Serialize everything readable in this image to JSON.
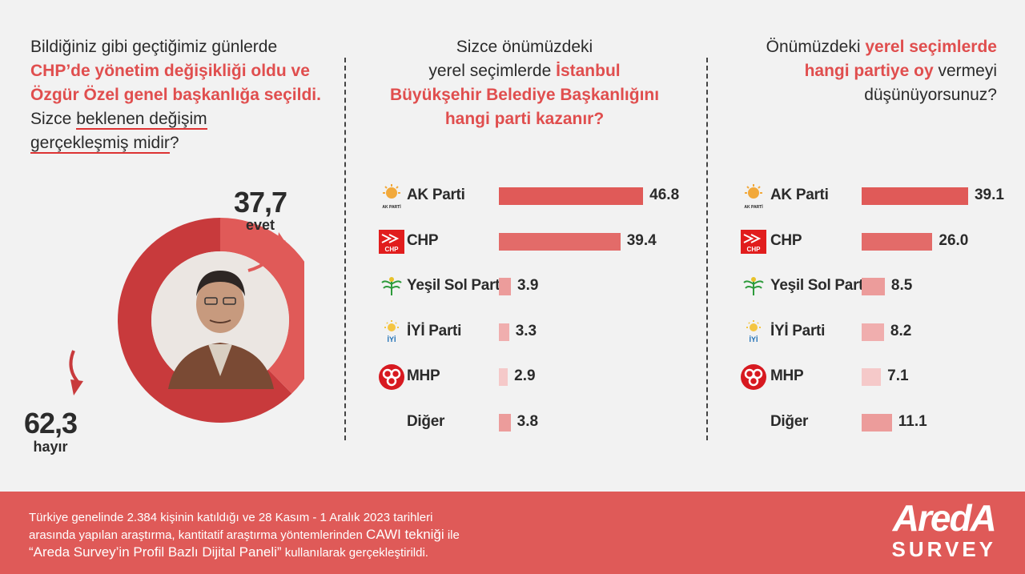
{
  "left": {
    "q_l1": "Bildiğiniz gibi geçtiğimiz günlerde",
    "q_l2": "CHP’de yönetim değişikliği oldu ve",
    "q_l3": "Özgür Özel genel başkanlığa seçildi.",
    "q_l4a": "Sizce ",
    "q_l4b": "beklenen değişim",
    "q_l5a": "gerçekleşmiş midir",
    "q_l5b": "?",
    "yes_value": "37,7",
    "yes_label": "evet",
    "no_value": "62,3",
    "no_label": "hayır"
  },
  "middle": {
    "q_l1": "Sizce önümüzdeki",
    "q_l2a": "yerel seçimlerde ",
    "q_l2b": "İstanbul",
    "q_l3": "Büyükşehir Belediye Başkanlığını",
    "q_l4": "hangi parti kazanır?"
  },
  "right": {
    "q_l1a": "Önümüzdeki ",
    "q_l1b": "yerel seçimlerde",
    "q_l2a": "hangi partiye oy",
    "q_l2b": " vermeyi",
    "q_l3": "düşünüyorsunuz?"
  },
  "logos": {
    "akp": "AK PARTİ",
    "chp": "CHP",
    "iyi": "İYİ"
  },
  "footer": {
    "l1": "Türkiye genelinde 2.384 kişinin katıldığı ve 28 Kasım - 1 Aralık 2023 tarihleri",
    "l2a": "arasında yapılan araştırma, kantitatif araştırma yöntemlerinden ",
    "l2b": "CAWI tekniği",
    "l2c": " ile",
    "l3a": "“Areda Survey’in Profil Bazlı Dijital Paneli”",
    "l3b": " kullanılarak gerçekleştirildi.",
    "brand1": "AredA",
    "brand2": "SURVEY"
  },
  "colors": {
    "accent": "#e04e4e",
    "bar_colors": [
      "#e05a58",
      "#e36b69",
      "#ec9c9b",
      "#f0aeae",
      "#f5c9c9",
      "#ec9c9b"
    ],
    "donut_yes": "#e05a58",
    "donut_no": "#c83a3c"
  },
  "chart_data": [
    {
      "type": "pie",
      "categories": [
        "evet",
        "hayır"
      ],
      "values": [
        37.7,
        62.3
      ]
    },
    {
      "type": "bar",
      "categories": [
        "AK Parti",
        "CHP",
        "Yeşil Sol Parti",
        "İYİ Parti",
        "MHP",
        "Diğer"
      ],
      "values": [
        46.8,
        39.4,
        3.9,
        3.3,
        2.9,
        3.8
      ],
      "value_labels": [
        "46.8",
        "39.4",
        "3.9",
        "3.3",
        "2.9",
        "3.8"
      ]
    },
    {
      "type": "bar",
      "categories": [
        "AK Parti",
        "CHP",
        "Yeşil Sol Parti",
        "İYİ Parti",
        "MHP",
        "Diğer"
      ],
      "values": [
        39.1,
        26.0,
        8.5,
        8.2,
        7.1,
        11.1
      ],
      "value_labels": [
        "39.1",
        "26.0",
        "8.5",
        "8.2",
        "7.1",
        "11.1"
      ]
    }
  ]
}
